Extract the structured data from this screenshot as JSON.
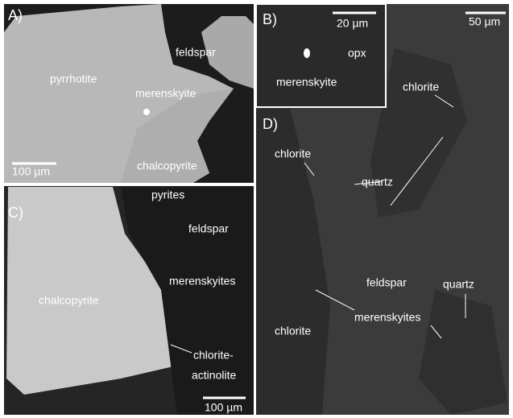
{
  "panels": [
    {
      "label": "A)",
      "scale_bar": "100 µm",
      "annotations": [
        "pyrrhotite",
        "merenskyite",
        "feldspar",
        "chalcopyrite"
      ]
    },
    {
      "label": "B)",
      "scale_bar": "20 µm",
      "annotations": [
        "opx",
        "merenskyite"
      ]
    },
    {
      "label": "C)",
      "scale_bar": "100 µm",
      "annotations": [
        "pyrites",
        "feldspar",
        "merenskyites",
        "chalcopyrite",
        "chlorite-",
        "actinolite"
      ]
    },
    {
      "label": "D)",
      "scale_bar": "50 µm",
      "annotations": [
        "chlorite",
        "quartz",
        "chlorite",
        "feldspar",
        "quartz",
        "merenskyites",
        "chlorite"
      ]
    }
  ]
}
